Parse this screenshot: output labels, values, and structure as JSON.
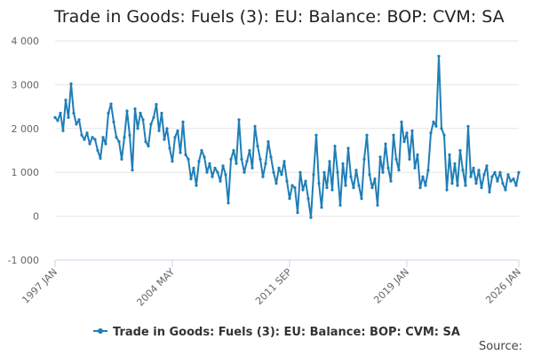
{
  "chart_data": {
    "type": "line",
    "title": "Trade in Goods: Fuels (3): EU: Balance: BOP: CVM: SA",
    "xlabel": "",
    "ylabel": "",
    "ylim": [
      -1000,
      4000
    ],
    "y_ticks": [
      "4 000",
      "3 000",
      "2 000",
      "1 000",
      "0",
      "-1 000"
    ],
    "x_ticks": [
      "1997 JAN",
      "2004 MAY",
      "2011 SEP",
      "2019 JAN",
      "2026 JAN"
    ],
    "grid": true,
    "legend_position": "bottom",
    "colors": {
      "series": "#1f7eb7"
    },
    "series": [
      {
        "name": "Trade in Goods: Fuels (3): EU: Balance: BOP: CVM: SA",
        "points": [
          [
            "1997 JAN",
            2250
          ],
          [
            "1997 MAR",
            2180
          ],
          [
            "1997 MAY",
            2350
          ],
          [
            "1997 JUL",
            1950
          ],
          [
            "1997 SEP",
            2650
          ],
          [
            "1997 NOV",
            2250
          ],
          [
            "1998 JAN",
            3020
          ],
          [
            "1998 MAR",
            2350
          ],
          [
            "1998 MAY",
            2100
          ],
          [
            "1998 JUL",
            2200
          ],
          [
            "1998 SEP",
            1850
          ],
          [
            "1998 NOV",
            1750
          ],
          [
            "1999 JAN",
            1900
          ],
          [
            "1999 MAR",
            1650
          ],
          [
            "1999 MAY",
            1800
          ],
          [
            "1999 JUL",
            1750
          ],
          [
            "1999 SEP",
            1500
          ],
          [
            "1999 NOV",
            1320
          ],
          [
            "2000 JAN",
            1800
          ],
          [
            "2000 MAR",
            1650
          ],
          [
            "2000 MAY",
            2350
          ],
          [
            "2000 JUL",
            2560
          ],
          [
            "2000 SEP",
            2150
          ],
          [
            "2000 NOV",
            1800
          ],
          [
            "2001 JAN",
            1700
          ],
          [
            "2001 MAR",
            1300
          ],
          [
            "2001 MAY",
            1800
          ],
          [
            "2001 JUL",
            2400
          ],
          [
            "2001 SEP",
            1850
          ],
          [
            "2001 NOV",
            1050
          ],
          [
            "2002 JAN",
            2450
          ],
          [
            "2002 MAR",
            2000
          ],
          [
            "2002 MAY",
            2350
          ],
          [
            "2002 JUL",
            2200
          ],
          [
            "2002 SEP",
            1700
          ],
          [
            "2002 NOV",
            1600
          ],
          [
            "2003 JAN",
            2100
          ],
          [
            "2003 MAR",
            2250
          ],
          [
            "2003 MAY",
            2550
          ],
          [
            "2003 JUL",
            1950
          ],
          [
            "2003 SEP",
            2350
          ],
          [
            "2003 NOV",
            1750
          ],
          [
            "2004 JAN",
            2000
          ],
          [
            "2004 MAR",
            1550
          ],
          [
            "2004 MAY",
            1250
          ],
          [
            "2004 JUL",
            1800
          ],
          [
            "2004 SEP",
            1950
          ],
          [
            "2004 NOV",
            1450
          ],
          [
            "2005 JAN",
            2150
          ],
          [
            "2005 MAR",
            1400
          ],
          [
            "2005 MAY",
            1300
          ],
          [
            "2005 JUL",
            850
          ],
          [
            "2005 SEP",
            1100
          ],
          [
            "2005 NOV",
            700
          ],
          [
            "2006 JAN",
            1250
          ],
          [
            "2006 MAR",
            1500
          ],
          [
            "2006 MAY",
            1350
          ],
          [
            "2006 JUL",
            1000
          ],
          [
            "2006 SEP",
            1200
          ],
          [
            "2006 NOV",
            900
          ],
          [
            "2007 JAN",
            1100
          ],
          [
            "2007 MAR",
            1000
          ],
          [
            "2007 MAY",
            800
          ],
          [
            "2007 JUL",
            1150
          ],
          [
            "2007 SEP",
            950
          ],
          [
            "2007 NOV",
            300
          ],
          [
            "2008 JAN",
            1300
          ],
          [
            "2008 MAR",
            1500
          ],
          [
            "2008 MAY",
            1200
          ],
          [
            "2008 JUL",
            2200
          ],
          [
            "2008 SEP",
            1300
          ],
          [
            "2008 NOV",
            1000
          ],
          [
            "2009 JAN",
            1250
          ],
          [
            "2009 MAR",
            1500
          ],
          [
            "2009 MAY",
            1100
          ],
          [
            "2009 JUL",
            2050
          ],
          [
            "2009 SEP",
            1600
          ],
          [
            "2009 NOV",
            1300
          ],
          [
            "2010 JAN",
            900
          ],
          [
            "2010 MAR",
            1200
          ],
          [
            "2010 MAY",
            1700
          ],
          [
            "2010 JUL",
            1350
          ],
          [
            "2010 SEP",
            1000
          ],
          [
            "2010 NOV",
            750
          ],
          [
            "2011 JAN",
            1100
          ],
          [
            "2011 MAR",
            950
          ],
          [
            "2011 MAY",
            1250
          ],
          [
            "2011 JUL",
            800
          ],
          [
            "2011 SEP",
            400
          ],
          [
            "2011 NOV",
            700
          ],
          [
            "2012 JAN",
            650
          ],
          [
            "2012 MAR",
            80
          ],
          [
            "2012 MAY",
            1000
          ],
          [
            "2012 JUL",
            600
          ],
          [
            "2012 SEP",
            800
          ],
          [
            "2012 NOV",
            400
          ],
          [
            "2013 JAN",
            -30
          ],
          [
            "2013 MAR",
            950
          ],
          [
            "2013 MAY",
            1850
          ],
          [
            "2013 JUL",
            750
          ],
          [
            "2013 SEP",
            200
          ],
          [
            "2013 NOV",
            1000
          ],
          [
            "2014 JAN",
            650
          ],
          [
            "2014 MAR",
            1250
          ],
          [
            "2014 MAY",
            600
          ],
          [
            "2014 JUL",
            1600
          ],
          [
            "2014 SEP",
            1000
          ],
          [
            "2014 NOV",
            250
          ],
          [
            "2015 JAN",
            1200
          ],
          [
            "2015 MAR",
            700
          ],
          [
            "2015 MAY",
            1550
          ],
          [
            "2015 JUL",
            900
          ],
          [
            "2015 SEP",
            650
          ],
          [
            "2015 NOV",
            1050
          ],
          [
            "2016 JAN",
            700
          ],
          [
            "2016 MAR",
            400
          ],
          [
            "2016 MAY",
            1300
          ],
          [
            "2016 JUL",
            1850
          ],
          [
            "2016 SEP",
            950
          ],
          [
            "2016 NOV",
            650
          ],
          [
            "2017 JAN",
            850
          ],
          [
            "2017 MAR",
            250
          ],
          [
            "2017 MAY",
            1350
          ],
          [
            "2017 JUL",
            1000
          ],
          [
            "2017 SEP",
            1650
          ],
          [
            "2017 NOV",
            1100
          ],
          [
            "2018 JAN",
            800
          ],
          [
            "2018 MAR",
            1850
          ],
          [
            "2018 MAY",
            1300
          ],
          [
            "2018 JUL",
            1050
          ],
          [
            "2018 SEP",
            2150
          ],
          [
            "2018 NOV",
            1700
          ],
          [
            "2019 JAN",
            1900
          ],
          [
            "2019 MAR",
            1300
          ],
          [
            "2019 MAY",
            1950
          ],
          [
            "2019 JUL",
            1100
          ],
          [
            "2019 SEP",
            1400
          ],
          [
            "2019 NOV",
            650
          ],
          [
            "2020 JAN",
            900
          ],
          [
            "2020 MAR",
            700
          ],
          [
            "2020 MAY",
            1050
          ],
          [
            "2020 JUL",
            1900
          ],
          [
            "2020 SEP",
            2150
          ],
          [
            "2020 NOV",
            2050
          ],
          [
            "2021 JAN",
            3650
          ],
          [
            "2021 MAR",
            2000
          ],
          [
            "2021 MAY",
            1850
          ],
          [
            "2021 JUL",
            600
          ],
          [
            "2021 SEP",
            1400
          ],
          [
            "2021 NOV",
            750
          ],
          [
            "2022 JAN",
            1200
          ],
          [
            "2022 MAR",
            700
          ],
          [
            "2022 MAY",
            1500
          ],
          [
            "2022 JUL",
            1050
          ],
          [
            "2022 SEP",
            700
          ],
          [
            "2022 NOV",
            2050
          ],
          [
            "2023 JAN",
            900
          ],
          [
            "2023 MAR",
            1100
          ],
          [
            "2023 MAY",
            750
          ],
          [
            "2023 JUL",
            1050
          ],
          [
            "2023 SEP",
            650
          ],
          [
            "2023 NOV",
            950
          ],
          [
            "2024 JAN",
            1150
          ],
          [
            "2024 MAR",
            550
          ],
          [
            "2024 MAY",
            900
          ],
          [
            "2024 JUL",
            1000
          ],
          [
            "2024 SEP",
            800
          ],
          [
            "2024 NOV",
            1000
          ],
          [
            "2025 JAN",
            750
          ],
          [
            "2025 MAR",
            600
          ],
          [
            "2025 MAY",
            950
          ],
          [
            "2025 JUL",
            800
          ],
          [
            "2025 SEP",
            850
          ],
          [
            "2025 NOV",
            700
          ],
          [
            "2026 JAN",
            1000
          ]
        ]
      }
    ],
    "source_label": "Source:"
  }
}
